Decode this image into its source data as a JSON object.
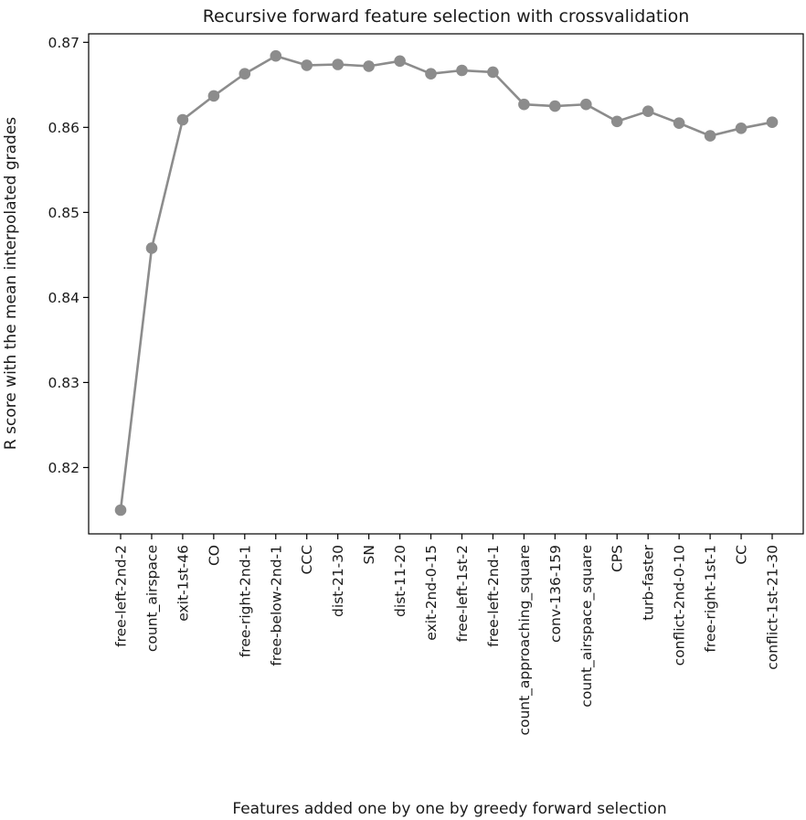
{
  "chart_data": {
    "type": "line",
    "title": "Recursive forward feature selection with crossvalidation",
    "xlabel": "Features added one by one by greedy forward selection",
    "ylabel": "R score with the mean interpolated grades",
    "categories": [
      "free-left-2nd-2",
      "count_airspace",
      "exit-1st-46",
      "CO",
      "free-right-2nd-1",
      "free-below-2nd-1",
      "CCC",
      "dist-21-30",
      "SN",
      "dist-11-20",
      "exit-2nd-0-15",
      "free-left-1st-2",
      "free-left-2nd-1",
      "count_approaching_square",
      "conv-136-159",
      "count_airspace_square",
      "CPS",
      "turb-faster",
      "conflict-2nd-0-10",
      "free-right-1st-1",
      "CC",
      "conflict-1st-21-30"
    ],
    "values": [
      0.815,
      0.8458,
      0.8609,
      0.8637,
      0.8663,
      0.8684,
      0.8673,
      0.8674,
      0.8672,
      0.8678,
      0.8663,
      0.8667,
      0.8665,
      0.8627,
      0.8625,
      0.8627,
      0.8607,
      0.8619,
      0.8605,
      0.859,
      0.8599,
      0.8606
    ],
    "ylim": [
      0.8122,
      0.871
    ],
    "yticks": [
      "0.82",
      "0.83",
      "0.84",
      "0.85",
      "0.86",
      "0.87"
    ],
    "grid": false,
    "line_color": "#8c8c8c",
    "marker_color": "#8c8c8c"
  }
}
